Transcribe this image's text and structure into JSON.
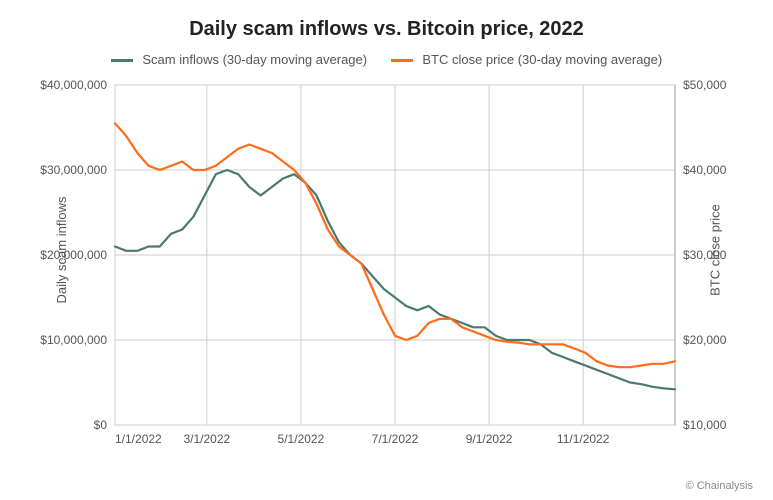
{
  "chart": {
    "type": "line_dual_axis",
    "title": "Daily scam inflows vs. Bitcoin price, 2022",
    "title_fontsize": 20,
    "background_color": "#ffffff",
    "grid_color": "#cccccc",
    "axis_color": "#999999",
    "attribution": "© Chainalysis",
    "legend": {
      "items": [
        {
          "label": "Scam inflows (30-day moving average)",
          "color": "#4a7a6f"
        },
        {
          "label": "BTC close price (30-day moving average)",
          "color": "#ff6b1a"
        }
      ]
    },
    "x_axis": {
      "type": "date",
      "min": "1/1/2022",
      "max": "12/31/2022",
      "ticks": [
        "1/1/2022",
        "3/1/2022",
        "5/1/2022",
        "7/1/2022",
        "9/1/2022",
        "11/1/2022"
      ],
      "tick_positions_pct": [
        0,
        16.4,
        33.2,
        50.0,
        66.8,
        83.6
      ],
      "label_fontsize": 12
    },
    "y_axis_left": {
      "label": "Daily scam inflows",
      "min": 0,
      "max": 40000000,
      "ticks": [
        "$0",
        "$10,000,000",
        "$20,000,000",
        "$30,000,000",
        "$40,000,000"
      ],
      "tick_values": [
        0,
        10000000,
        20000000,
        30000000,
        40000000
      ],
      "label_fontsize": 13
    },
    "y_axis_right": {
      "label": "BTC close price",
      "min": 10000,
      "max": 50000,
      "ticks": [
        "$10,000",
        "$20,000",
        "$30,000",
        "$40,000",
        "$50,000"
      ],
      "tick_values": [
        10000,
        20000,
        30000,
        40000,
        50000
      ],
      "label_fontsize": 13
    },
    "series": [
      {
        "name": "scam_inflows",
        "axis": "left",
        "color": "#4a7a6f",
        "line_width": 2.2,
        "data": [
          {
            "x_pct": 0,
            "y": 21000000
          },
          {
            "x_pct": 2,
            "y": 20500000
          },
          {
            "x_pct": 4,
            "y": 20500000
          },
          {
            "x_pct": 6,
            "y": 21000000
          },
          {
            "x_pct": 8,
            "y": 21000000
          },
          {
            "x_pct": 10,
            "y": 22500000
          },
          {
            "x_pct": 12,
            "y": 23000000
          },
          {
            "x_pct": 14,
            "y": 24500000
          },
          {
            "x_pct": 16,
            "y": 27000000
          },
          {
            "x_pct": 18,
            "y": 29500000
          },
          {
            "x_pct": 20,
            "y": 30000000
          },
          {
            "x_pct": 22,
            "y": 29500000
          },
          {
            "x_pct": 24,
            "y": 28000000
          },
          {
            "x_pct": 26,
            "y": 27000000
          },
          {
            "x_pct": 28,
            "y": 28000000
          },
          {
            "x_pct": 30,
            "y": 29000000
          },
          {
            "x_pct": 32,
            "y": 29500000
          },
          {
            "x_pct": 34,
            "y": 28500000
          },
          {
            "x_pct": 36,
            "y": 27000000
          },
          {
            "x_pct": 38,
            "y": 24000000
          },
          {
            "x_pct": 40,
            "y": 21500000
          },
          {
            "x_pct": 42,
            "y": 20000000
          },
          {
            "x_pct": 44,
            "y": 19000000
          },
          {
            "x_pct": 46,
            "y": 17500000
          },
          {
            "x_pct": 48,
            "y": 16000000
          },
          {
            "x_pct": 50,
            "y": 15000000
          },
          {
            "x_pct": 52,
            "y": 14000000
          },
          {
            "x_pct": 54,
            "y": 13500000
          },
          {
            "x_pct": 56,
            "y": 14000000
          },
          {
            "x_pct": 58,
            "y": 13000000
          },
          {
            "x_pct": 60,
            "y": 12500000
          },
          {
            "x_pct": 62,
            "y": 12000000
          },
          {
            "x_pct": 64,
            "y": 11500000
          },
          {
            "x_pct": 66,
            "y": 11500000
          },
          {
            "x_pct": 68,
            "y": 10500000
          },
          {
            "x_pct": 70,
            "y": 10000000
          },
          {
            "x_pct": 72,
            "y": 10000000
          },
          {
            "x_pct": 74,
            "y": 10000000
          },
          {
            "x_pct": 76,
            "y": 9500000
          },
          {
            "x_pct": 78,
            "y": 8500000
          },
          {
            "x_pct": 80,
            "y": 8000000
          },
          {
            "x_pct": 82,
            "y": 7500000
          },
          {
            "x_pct": 84,
            "y": 7000000
          },
          {
            "x_pct": 86,
            "y": 6500000
          },
          {
            "x_pct": 88,
            "y": 6000000
          },
          {
            "x_pct": 90,
            "y": 5500000
          },
          {
            "x_pct": 92,
            "y": 5000000
          },
          {
            "x_pct": 94,
            "y": 4800000
          },
          {
            "x_pct": 96,
            "y": 4500000
          },
          {
            "x_pct": 98,
            "y": 4300000
          },
          {
            "x_pct": 100,
            "y": 4200000
          }
        ]
      },
      {
        "name": "btc_price",
        "axis": "right",
        "color": "#ff6b1a",
        "line_width": 2.2,
        "data": [
          {
            "x_pct": 0,
            "y": 45500
          },
          {
            "x_pct": 2,
            "y": 44000
          },
          {
            "x_pct": 4,
            "y": 42000
          },
          {
            "x_pct": 6,
            "y": 40500
          },
          {
            "x_pct": 8,
            "y": 40000
          },
          {
            "x_pct": 10,
            "y": 40500
          },
          {
            "x_pct": 12,
            "y": 41000
          },
          {
            "x_pct": 14,
            "y": 40000
          },
          {
            "x_pct": 16,
            "y": 40000
          },
          {
            "x_pct": 18,
            "y": 40500
          },
          {
            "x_pct": 20,
            "y": 41500
          },
          {
            "x_pct": 22,
            "y": 42500
          },
          {
            "x_pct": 24,
            "y": 43000
          },
          {
            "x_pct": 26,
            "y": 42500
          },
          {
            "x_pct": 28,
            "y": 42000
          },
          {
            "x_pct": 30,
            "y": 41000
          },
          {
            "x_pct": 32,
            "y": 40000
          },
          {
            "x_pct": 34,
            "y": 38500
          },
          {
            "x_pct": 36,
            "y": 36000
          },
          {
            "x_pct": 38,
            "y": 33000
          },
          {
            "x_pct": 40,
            "y": 31000
          },
          {
            "x_pct": 42,
            "y": 30000
          },
          {
            "x_pct": 44,
            "y": 29000
          },
          {
            "x_pct": 46,
            "y": 26000
          },
          {
            "x_pct": 48,
            "y": 23000
          },
          {
            "x_pct": 50,
            "y": 20500
          },
          {
            "x_pct": 52,
            "y": 20000
          },
          {
            "x_pct": 54,
            "y": 20500
          },
          {
            "x_pct": 56,
            "y": 22000
          },
          {
            "x_pct": 58,
            "y": 22500
          },
          {
            "x_pct": 60,
            "y": 22500
          },
          {
            "x_pct": 62,
            "y": 21500
          },
          {
            "x_pct": 64,
            "y": 21000
          },
          {
            "x_pct": 66,
            "y": 20500
          },
          {
            "x_pct": 68,
            "y": 20000
          },
          {
            "x_pct": 70,
            "y": 19800
          },
          {
            "x_pct": 72,
            "y": 19700
          },
          {
            "x_pct": 74,
            "y": 19500
          },
          {
            "x_pct": 76,
            "y": 19500
          },
          {
            "x_pct": 78,
            "y": 19500
          },
          {
            "x_pct": 80,
            "y": 19500
          },
          {
            "x_pct": 82,
            "y": 19000
          },
          {
            "x_pct": 84,
            "y": 18500
          },
          {
            "x_pct": 86,
            "y": 17500
          },
          {
            "x_pct": 88,
            "y": 17000
          },
          {
            "x_pct": 90,
            "y": 16800
          },
          {
            "x_pct": 92,
            "y": 16800
          },
          {
            "x_pct": 94,
            "y": 17000
          },
          {
            "x_pct": 96,
            "y": 17200
          },
          {
            "x_pct": 98,
            "y": 17200
          },
          {
            "x_pct": 100,
            "y": 17500
          }
        ]
      }
    ]
  }
}
